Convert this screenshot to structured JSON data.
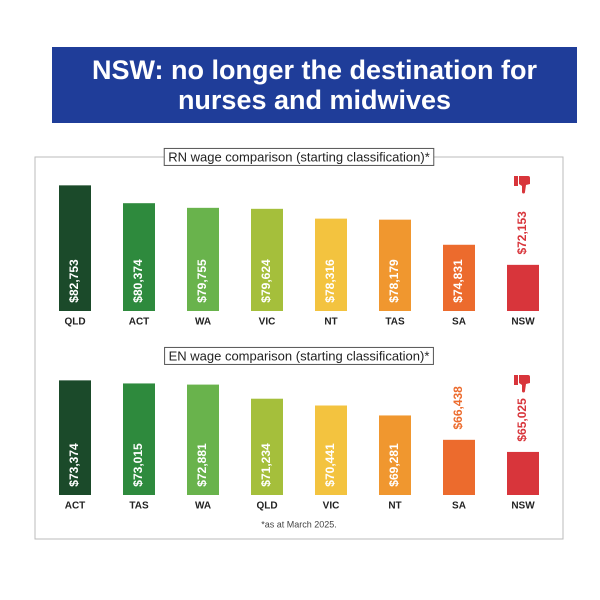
{
  "title": "NSW: no longer the destination for nurses and midwives",
  "footnote": "*as at March 2025.",
  "chart_data": [
    {
      "type": "bar",
      "title": "RN wage comparison (starting classification)*",
      "categories": [
        "QLD",
        "ACT",
        "WA",
        "VIC",
        "NT",
        "TAS",
        "SA",
        "NSW"
      ],
      "values": [
        82753,
        80374,
        79755,
        79624,
        78316,
        78179,
        74831,
        72153
      ],
      "value_labels": [
        "$82,753",
        "$80,374",
        "$79,755",
        "$79,624",
        "$78,316",
        "$78,179",
        "$74,831",
        "$72,153"
      ],
      "colors": [
        "#1b4a2a",
        "#2e8a3d",
        "#69b34c",
        "#a5bf3b",
        "#f3c33f",
        "#f0972f",
        "#ec6b2d",
        "#d8353b"
      ],
      "ylim": [
        66000,
        84000
      ]
    },
    {
      "type": "bar",
      "title": "EN wage comparison (starting classification)*",
      "categories": [
        "ACT",
        "TAS",
        "WA",
        "QLD",
        "VIC",
        "NT",
        "SA",
        "NSW"
      ],
      "values": [
        73374,
        73015,
        72881,
        71234,
        70441,
        69281,
        66438,
        65025
      ],
      "value_labels": [
        "$73,374",
        "$73,015",
        "$72,881",
        "$71,234",
        "$70,441",
        "$69,281",
        "$66,438",
        "$65,025"
      ],
      "colors": [
        "#1b4a2a",
        "#2e8a3d",
        "#69b34c",
        "#a5bf3b",
        "#f3c33f",
        "#f0972f",
        "#ec6b2d",
        "#d8353b"
      ],
      "ylim": [
        60000,
        74000
      ]
    }
  ]
}
